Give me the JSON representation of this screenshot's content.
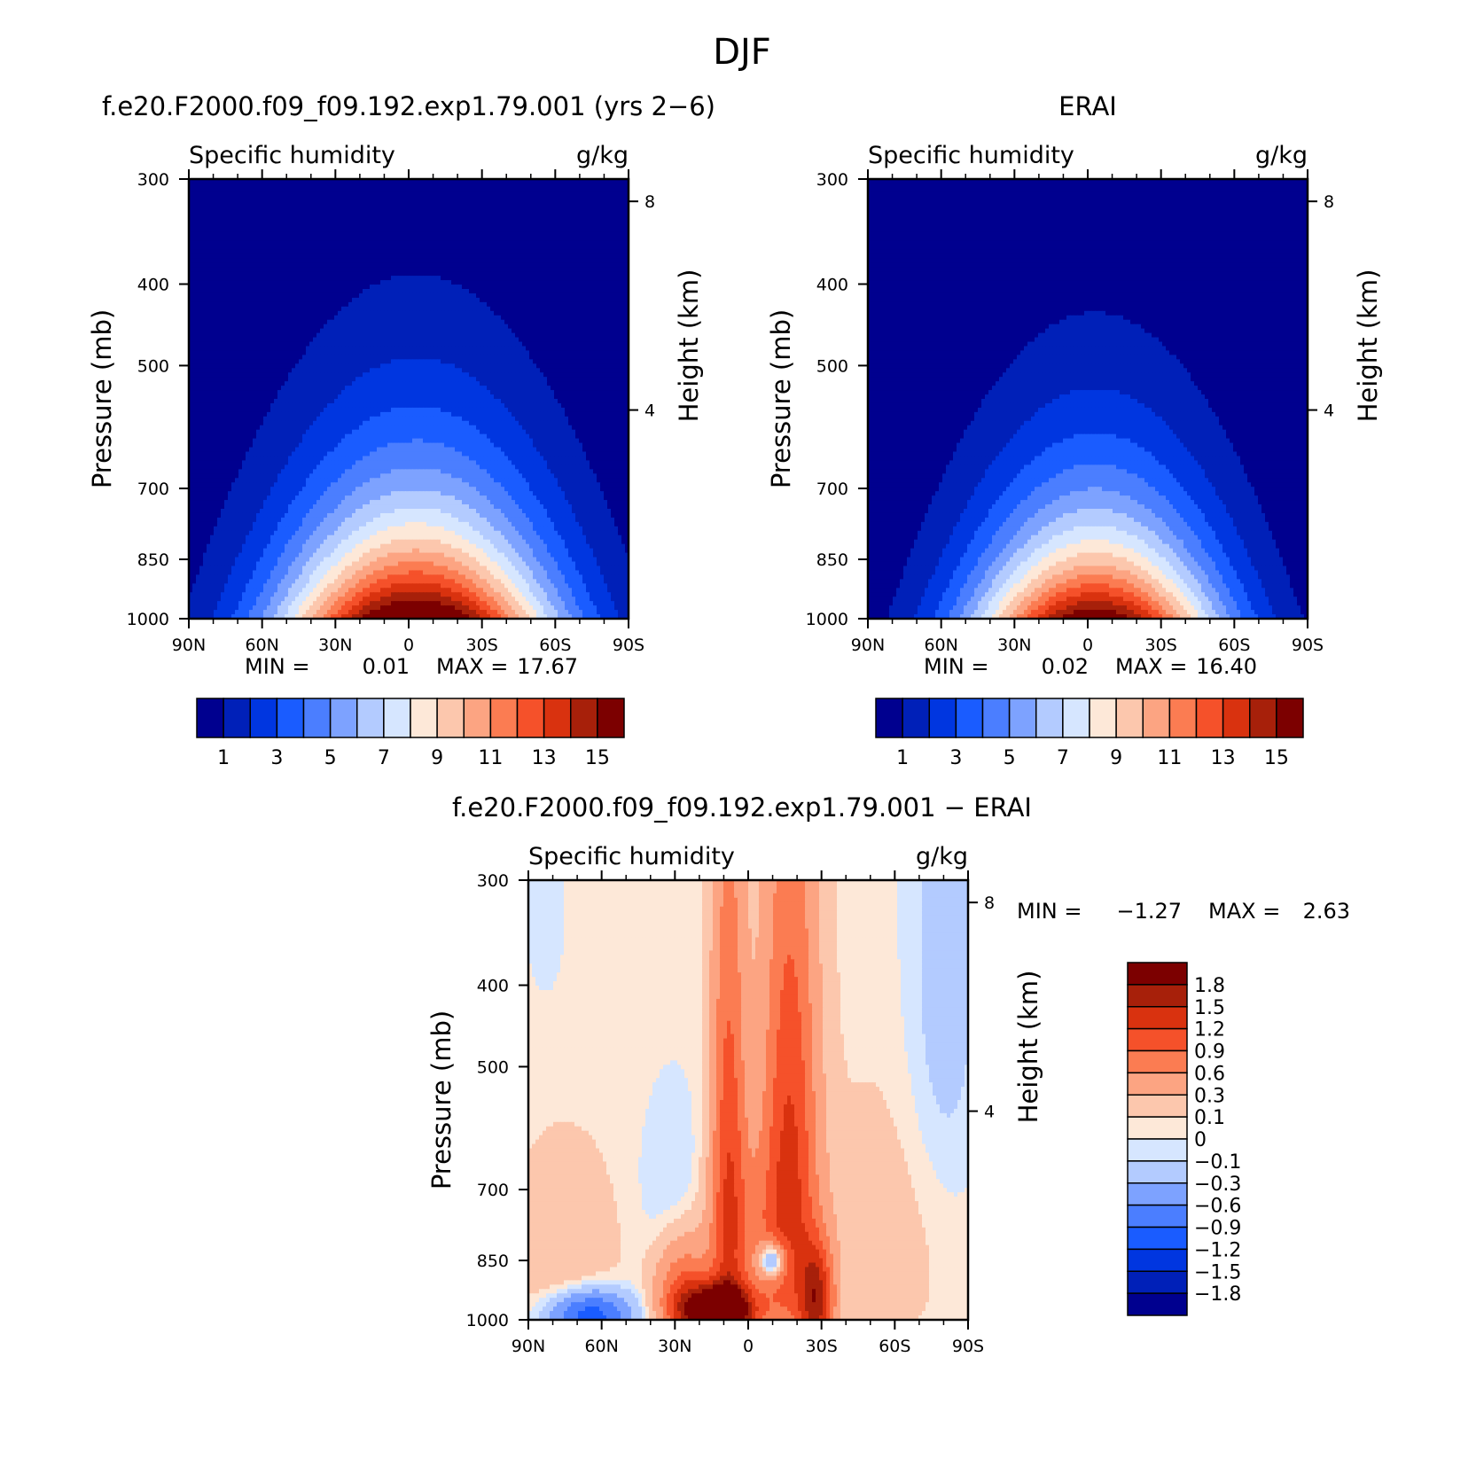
{
  "figure": {
    "title": "DJF"
  },
  "chart_data": [
    {
      "type": "heatmap",
      "panel": "model",
      "title": "f.e20.F2000.f09_f09.192.exp1.79.001 (yrs 2−6)",
      "left_label": "Specific humidity",
      "right_label": "g/kg",
      "ylabel": "Pressure (mb)",
      "ylabel_right": "Height (km)",
      "xlabel": "",
      "x_ticks": [
        "90N",
        "60N",
        "30N",
        "0",
        "30S",
        "60S",
        "90S"
      ],
      "y_ticks": [
        "300",
        "400",
        "500",
        "700",
        "850",
        "1000"
      ],
      "y_ticks_right": [
        "8",
        "4"
      ],
      "xlim": [
        90,
        -90
      ],
      "ylim": [
        1000,
        300
      ],
      "y_scale": "log",
      "field_peak": {
        "lat": -3,
        "value": 17.67
      },
      "field_width_deg": 40,
      "decay_height_km": 2.3,
      "levels": [
        1,
        2,
        3,
        4,
        5,
        6,
        7,
        8,
        9,
        10,
        11,
        12,
        13,
        14,
        15
      ],
      "colorbar_labels": [
        "1",
        "3",
        "5",
        "7",
        "9",
        "11",
        "13",
        "15"
      ],
      "min_label": "MIN =",
      "min_value": "0.01",
      "max_label": "MAX =",
      "max_value": "17.67"
    },
    {
      "type": "heatmap",
      "panel": "reanalysis",
      "title": "ERAI",
      "left_label": "Specific humidity",
      "right_label": "g/kg",
      "ylabel": "Pressure (mb)",
      "ylabel_right": "Height (km)",
      "xlabel": "",
      "x_ticks": [
        "90N",
        "60N",
        "30N",
        "0",
        "30S",
        "60S",
        "90S"
      ],
      "y_ticks": [
        "300",
        "400",
        "500",
        "700",
        "850",
        "1000"
      ],
      "y_ticks_right": [
        "8",
        "4"
      ],
      "xlim": [
        90,
        -90
      ],
      "ylim": [
        1000,
        300
      ],
      "y_scale": "log",
      "field_peak": {
        "lat": -3,
        "value": 16.4
      },
      "field_width_deg": 36,
      "decay_height_km": 2.1,
      "levels": [
        1,
        2,
        3,
        4,
        5,
        6,
        7,
        8,
        9,
        10,
        11,
        12,
        13,
        14,
        15
      ],
      "colorbar_labels": [
        "1",
        "3",
        "5",
        "7",
        "9",
        "11",
        "13",
        "15"
      ],
      "min_label": "MIN =",
      "min_value": "0.02",
      "max_label": "MAX =",
      "max_value": "16.40"
    },
    {
      "type": "heatmap",
      "panel": "difference",
      "title": "f.e20.F2000.f09_f09.192.exp1.79.001 − ERAI",
      "left_label": "Specific humidity",
      "right_label": "g/kg",
      "ylabel": "Pressure (mb)",
      "ylabel_right": "Height (km)",
      "xlabel": "",
      "x_ticks": [
        "90N",
        "60N",
        "30N",
        "0",
        "30S",
        "60S",
        "90S"
      ],
      "y_ticks": [
        "300",
        "400",
        "500",
        "700",
        "850",
        "1000"
      ],
      "y_ticks_right": [
        "8",
        "4"
      ],
      "xlim": [
        90,
        -90
      ],
      "ylim": [
        1000,
        300
      ],
      "y_scale": "log",
      "features": [
        {
          "lat": 12,
          "p": 980,
          "lat_w": 10,
          "p_w": 50,
          "value": 2.6
        },
        {
          "lat": 8,
          "p": 650,
          "lat_w": 5,
          "p_w": 350,
          "value": 1.0
        },
        {
          "lat": -17,
          "p": 600,
          "lat_w": 8,
          "p_w": 320,
          "value": 1.1
        },
        {
          "lat": -28,
          "p": 950,
          "lat_w": 5,
          "p_w": 100,
          "value": 1.4
        },
        {
          "lat": 27,
          "p": 930,
          "lat_w": 8,
          "p_w": 100,
          "value": 0.9
        },
        {
          "lat": -5,
          "p": 800,
          "lat_w": 16,
          "p_w": 140,
          "value": 0.45
        },
        {
          "lat": -10,
          "p": 850,
          "lat_w": 4,
          "p_w": 30,
          "value": -1.3
        },
        {
          "lat": 30,
          "p": 720,
          "lat_w": 10,
          "p_w": 140,
          "value": -0.2
        },
        {
          "lat": 65,
          "p": 990,
          "lat_w": 12,
          "p_w": 50,
          "value": -1.2
        },
        {
          "lat": -80,
          "p": 450,
          "lat_w": 12,
          "p_w": 260,
          "value": -0.25
        },
        {
          "lat": 83,
          "p": 330,
          "lat_w": 6,
          "p_w": 60,
          "value": -0.12
        },
        {
          "lat": 75,
          "p": 850,
          "lat_w": 14,
          "p_w": 150,
          "value": 0.25
        },
        {
          "lat": -65,
          "p": 750,
          "lat_w": 20,
          "p_w": 200,
          "value": 0.15
        }
      ],
      "base_value": 0.05,
      "levels": [
        -1.8,
        -1.5,
        -1.2,
        -0.9,
        -0.6,
        -0.3,
        -0.1,
        0,
        0.1,
        0.3,
        0.6,
        0.9,
        1.2,
        1.5,
        1.8
      ],
      "colorbar_labels": [
        "1.8",
        "1.5",
        "1.2",
        "0.9",
        "0.6",
        "0.3",
        "0.1",
        "0",
        "−0.1",
        "−0.3",
        "−0.6",
        "−0.9",
        "−1.2",
        "−1.5",
        "−1.8"
      ],
      "min_label": "MIN =",
      "min_value": "−1.27",
      "max_label": "MAX =",
      "max_value": "2.63"
    }
  ],
  "colors": {
    "palette": [
      "#00008f",
      "#0020b8",
      "#0036e0",
      "#1a5cff",
      "#4b7eff",
      "#7da2ff",
      "#b3cbff",
      "#d6e6ff",
      "#fde8d8",
      "#fcc7ad",
      "#fca482",
      "#fb7c52",
      "#f5512a",
      "#d9320f",
      "#a7200a",
      "#7c0000"
    ]
  }
}
